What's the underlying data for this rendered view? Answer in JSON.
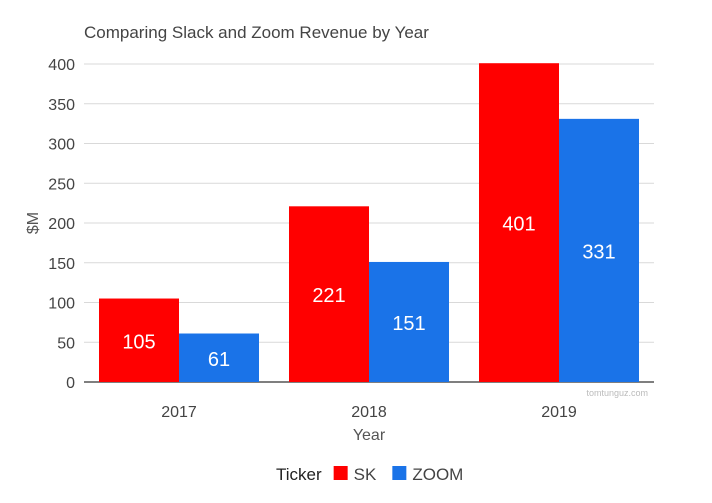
{
  "chart_data": {
    "type": "bar",
    "title": "Comparing Slack and Zoom Revenue by Year",
    "xlabel": "Year",
    "ylabel": "$M",
    "categories": [
      "2017",
      "2018",
      "2019"
    ],
    "series": [
      {
        "name": "SK",
        "color": "#ff0000",
        "values": [
          105,
          221,
          401
        ]
      },
      {
        "name": "ZOOM",
        "color": "#1a73e8",
        "values": [
          61,
          151,
          331
        ]
      }
    ],
    "yticks": [
      "0",
      "50",
      "100",
      "150",
      "200",
      "250",
      "300",
      "350",
      "400"
    ],
    "ylim": [
      0,
      400
    ],
    "grid": true,
    "legend_title": "Ticker",
    "legend_position": "bottom",
    "watermark": "tomtunguz.com"
  }
}
